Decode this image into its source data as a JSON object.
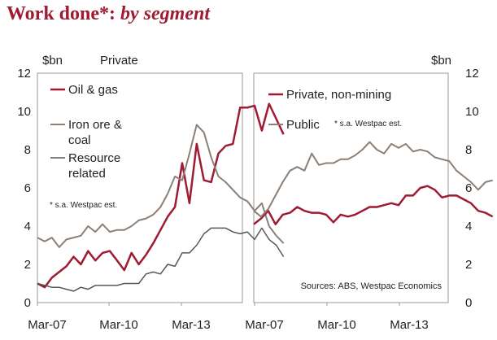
{
  "title_main": "Work done*: ",
  "title_sub": "by segment",
  "colors": {
    "accent": "#9e1b32",
    "grey": "#8c7f75",
    "dark": "#575757",
    "frame": "#999999"
  },
  "chart_data": [
    {
      "type": "line",
      "panel": "left",
      "panel_label": "Private",
      "ylabel": "$bn",
      "ylim": [
        0,
        12
      ],
      "yticks": [
        "0",
        "2",
        "4",
        "6",
        "8",
        "10",
        "12"
      ],
      "xticks": [
        "Mar-07",
        "Mar-10",
        "Mar-13"
      ],
      "x_start": "Mar-07",
      "frequency": "quarterly",
      "note": "* s.a. Westpac est.",
      "series": [
        {
          "name": "Oil & gas",
          "color": "#9e1b32",
          "values": [
            1.0,
            0.8,
            1.3,
            1.6,
            1.9,
            2.4,
            2.0,
            2.7,
            2.2,
            2.6,
            2.7,
            2.2,
            1.7,
            2.6,
            2.0,
            2.5,
            3.1,
            3.8,
            4.5,
            5.0,
            7.3,
            5.2,
            8.3,
            6.4,
            6.3,
            7.8,
            8.2,
            8.3,
            10.2,
            10.2,
            10.3,
            9.0,
            10.4,
            9.6,
            8.8
          ]
        },
        {
          "name": "Iron ore & coal",
          "color": "#8c7f75",
          "values": [
            3.4,
            3.2,
            3.4,
            2.9,
            3.3,
            3.4,
            3.5,
            4.0,
            3.7,
            4.1,
            3.7,
            3.8,
            3.8,
            4.0,
            4.3,
            4.4,
            4.6,
            5.0,
            5.7,
            6.6,
            6.4,
            7.8,
            9.3,
            8.9,
            7.6,
            6.6,
            6.3,
            5.9,
            5.5,
            5.3,
            4.8,
            5.2,
            4.0,
            3.5,
            3.1
          ]
        },
        {
          "name": "Resource related",
          "color": "#575757",
          "values": [
            1.0,
            0.9,
            0.8,
            0.8,
            0.7,
            0.6,
            0.8,
            0.7,
            0.9,
            0.9,
            0.9,
            0.9,
            1.0,
            1.0,
            1.0,
            1.5,
            1.6,
            1.5,
            2.0,
            1.9,
            2.6,
            2.6,
            3.0,
            3.6,
            3.9,
            3.9,
            3.9,
            3.7,
            3.6,
            3.7,
            3.3,
            3.9,
            3.3,
            3.0,
            2.4
          ]
        }
      ]
    },
    {
      "type": "line",
      "panel": "right",
      "ylabel": "$bn",
      "ylim": [
        0,
        12
      ],
      "yticks": [
        "0",
        "2",
        "4",
        "6",
        "8",
        "10",
        "12"
      ],
      "xticks": [
        "Mar-07",
        "Mar-10",
        "Mar-13"
      ],
      "x_start": "Mar-07",
      "frequency": "quarterly",
      "note": "* s.a. Westpac est.",
      "source": "Sources: ABS, Westpac Economics",
      "series": [
        {
          "name": "Private, non-mining",
          "color": "#9e1b32",
          "values": [
            4.1,
            4.4,
            4.8,
            4.1,
            4.6,
            4.7,
            5.0,
            4.8,
            4.7,
            4.7,
            4.6,
            4.2,
            4.6,
            4.5,
            4.6,
            4.8,
            5.0,
            5.0,
            5.1,
            5.2,
            5.1,
            5.6,
            5.6,
            6.0,
            6.1,
            5.9,
            5.5,
            5.6,
            5.6,
            5.4,
            5.2,
            4.8,
            4.7,
            4.5
          ]
        },
        {
          "name": "Public",
          "color": "#8c7f75",
          "values": [
            4.8,
            4.5,
            4.9,
            5.6,
            6.3,
            6.9,
            7.1,
            6.9,
            7.8,
            7.2,
            7.3,
            7.3,
            7.5,
            7.5,
            7.7,
            8.0,
            8.4,
            8.0,
            7.8,
            8.3,
            8.1,
            8.3,
            7.9,
            8.0,
            7.9,
            7.6,
            7.5,
            7.4,
            6.9,
            6.6,
            6.3,
            5.9,
            6.3,
            6.4
          ]
        }
      ]
    }
  ]
}
